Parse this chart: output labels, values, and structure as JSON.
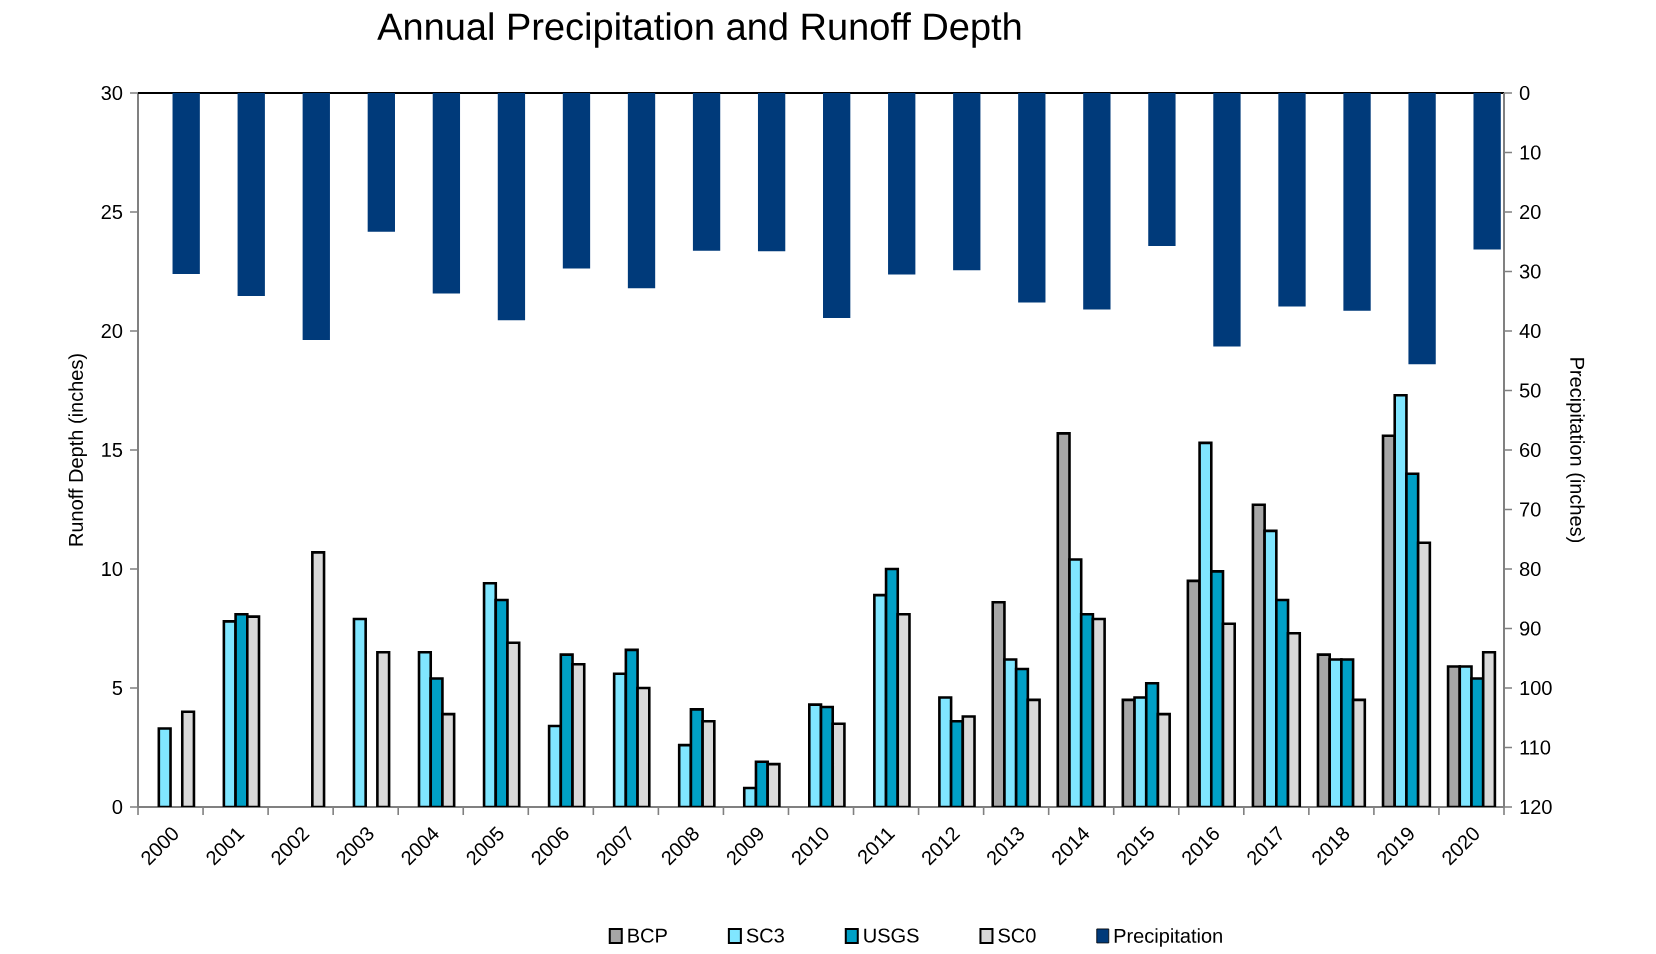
{
  "chart_data": {
    "type": "bar",
    "title": "Annual Precipitation and Runoff Depth",
    "categories": [
      "2000",
      "2001",
      "2002",
      "2003",
      "2004",
      "2005",
      "2006",
      "2007",
      "2008",
      "2009",
      "2010",
      "2011",
      "2012",
      "2013",
      "2014",
      "2015",
      "2016",
      "2017",
      "2018",
      "2019",
      "2020"
    ],
    "series": [
      {
        "name": "BCP",
        "color": "#a6a6a6",
        "values": [
          null,
          null,
          null,
          null,
          null,
          null,
          null,
          null,
          null,
          null,
          null,
          null,
          null,
          8.6,
          15.7,
          4.5,
          9.5,
          12.7,
          6.4,
          15.6,
          5.9
        ]
      },
      {
        "name": "SC3",
        "color": "#80e6ff",
        "values": [
          3.3,
          7.8,
          null,
          7.9,
          6.5,
          9.4,
          3.4,
          5.6,
          2.6,
          0.8,
          4.3,
          8.9,
          4.6,
          6.2,
          10.4,
          4.6,
          15.3,
          11.6,
          6.2,
          17.3,
          5.9
        ]
      },
      {
        "name": "USGS",
        "color": "#00a0c6",
        "values": [
          null,
          8.1,
          null,
          null,
          5.4,
          8.7,
          6.4,
          6.6,
          4.1,
          1.9,
          4.2,
          10.0,
          3.6,
          5.8,
          8.1,
          5.2,
          9.9,
          8.7,
          6.2,
          14.0,
          5.4
        ]
      },
      {
        "name": "SC0",
        "color": "#d9d9d9",
        "values": [
          4.0,
          8.0,
          10.7,
          6.5,
          3.9,
          6.9,
          6.0,
          5.0,
          3.6,
          1.8,
          3.5,
          8.1,
          3.8,
          4.5,
          7.9,
          3.9,
          7.7,
          7.3,
          4.5,
          11.1,
          6.5
        ]
      },
      {
        "name": "Precipitation",
        "color": "#003a7a",
        "axis": "y2",
        "values": [
          30.4,
          34.1,
          41.5,
          23.3,
          33.7,
          38.2,
          29.5,
          32.8,
          26.5,
          26.6,
          37.8,
          30.5,
          29.8,
          35.2,
          36.4,
          25.7,
          42.6,
          35.9,
          36.6,
          45.6,
          26.3
        ]
      }
    ],
    "ylabel": "Runoff Depth (inches)",
    "y2label": "Precipitation (inches)",
    "ylim": [
      0,
      30
    ],
    "yticks": [
      0,
      5,
      10,
      15,
      20,
      25,
      30
    ],
    "y2lim": [
      120,
      0
    ],
    "y2ticks": [
      0,
      10,
      20,
      30,
      40,
      50,
      60,
      70,
      80,
      90,
      100,
      110,
      120
    ],
    "legend": "bottom"
  }
}
